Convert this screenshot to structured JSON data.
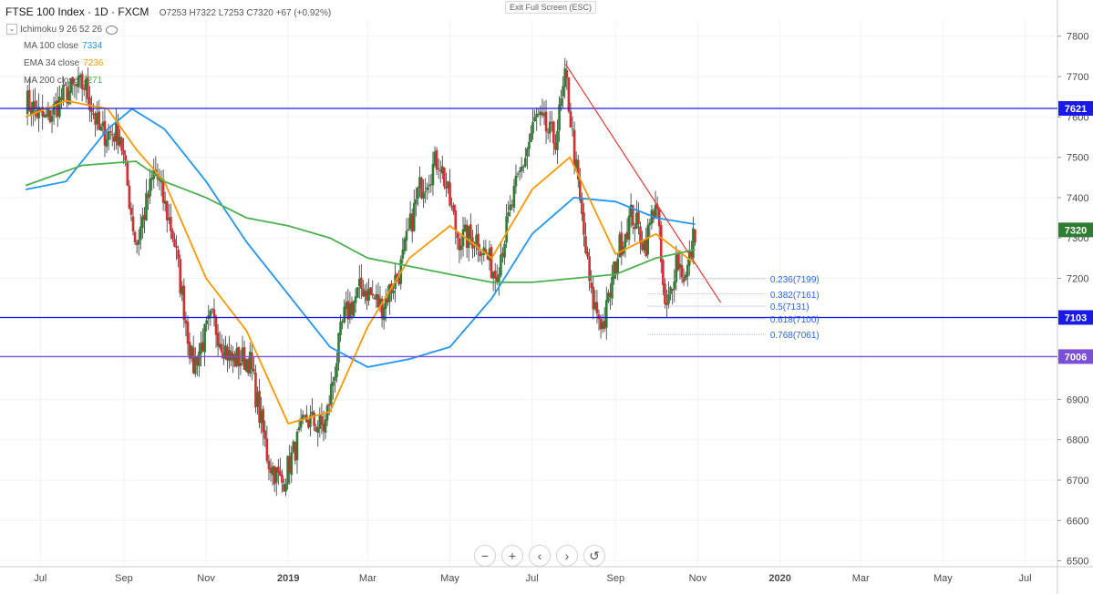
{
  "header": {
    "title": "FTSE 100 Index · 1D · FXCM",
    "ohlc": "O7253 H7322 L7253 C7320 +67 (+0.92%)"
  },
  "indicators": [
    {
      "label": "Ichimoku 9 26 52 26",
      "value": "",
      "color": "#9e9e9e"
    },
    {
      "label": "MA 100 close",
      "value": "7334",
      "color": "#2196f3"
    },
    {
      "label": "EMA 34 close",
      "value": "7236",
      "color": "#ff9800"
    },
    {
      "label": "MA 200 close",
      "value": "7271",
      "color": "#4caf50"
    }
  ],
  "exit_fullscreen": "Exit Full Screen (ESC)",
  "buttons": [
    "−",
    "+",
    "‹",
    "›",
    "↺"
  ],
  "chart_data": {
    "type": "candlestick",
    "symbol": "FTSE 100 Index",
    "interval": "1D",
    "source": "FXCM",
    "x_tick_labels": [
      "Jul",
      "Sep",
      "Nov",
      "2019",
      "Mar",
      "May",
      "Jul",
      "Sep",
      "Nov",
      "2020",
      "Mar",
      "May",
      "Jul"
    ],
    "y_tick_labels": [
      6500,
      6600,
      6700,
      6800,
      6900,
      7000,
      7100,
      7200,
      7300,
      7400,
      7500,
      7600,
      7700,
      7800
    ],
    "ylim": [
      6490,
      7840
    ],
    "close_path": [
      [
        "2018-06-20",
        7640
      ],
      [
        "2018-07-05",
        7590
      ],
      [
        "2018-07-20",
        7660
      ],
      [
        "2018-08-03",
        7680
      ],
      [
        "2018-08-14",
        7560
      ],
      [
        "2018-08-29",
        7560
      ],
      [
        "2018-09-10",
        7280
      ],
      [
        "2018-09-24",
        7470
      ],
      [
        "2018-10-08",
        7300
      ],
      [
        "2018-10-22",
        6980
      ],
      [
        "2018-11-05",
        7100
      ],
      [
        "2018-11-19",
        7000
      ],
      [
        "2018-12-03",
        7000
      ],
      [
        "2018-12-17",
        6750
      ],
      [
        "2018-12-27",
        6690
      ],
      [
        "2019-01-14",
        6850
      ],
      [
        "2019-01-28",
        6830
      ],
      [
        "2019-02-11",
        7100
      ],
      [
        "2019-02-25",
        7180
      ],
      [
        "2019-03-11",
        7130
      ],
      [
        "2019-03-25",
        7220
      ],
      [
        "2019-04-08",
        7420
      ],
      [
        "2019-04-23",
        7500
      ],
      [
        "2019-05-07",
        7300
      ],
      [
        "2019-05-21",
        7300
      ],
      [
        "2019-06-04",
        7210
      ],
      [
        "2019-06-18",
        7410
      ],
      [
        "2019-07-04",
        7600
      ],
      [
        "2019-07-18",
        7540
      ],
      [
        "2019-07-26",
        7700
      ],
      [
        "2019-08-05",
        7400
      ],
      [
        "2019-08-14",
        7150
      ],
      [
        "2019-08-23",
        7080
      ],
      [
        "2019-09-03",
        7270
      ],
      [
        "2019-09-13",
        7360
      ],
      [
        "2019-09-23",
        7280
      ],
      [
        "2019-10-01",
        7400
      ],
      [
        "2019-10-08",
        7100
      ],
      [
        "2019-10-16",
        7250
      ],
      [
        "2019-10-23",
        7200
      ],
      [
        "2019-10-30",
        7320
      ]
    ],
    "series": [
      {
        "name": "MA 100 close",
        "color": "#2196f3",
        "values": [
          [
            "2018-06-20",
            7420
          ],
          [
            "2018-07-20",
            7440
          ],
          [
            "2018-08-20",
            7570
          ],
          [
            "2018-09-07",
            7620
          ],
          [
            "2018-10-01",
            7570
          ],
          [
            "2018-11-01",
            7440
          ],
          [
            "2018-12-01",
            7290
          ],
          [
            "2019-01-01",
            7160
          ],
          [
            "2019-02-01",
            7030
          ],
          [
            "2019-03-01",
            6980
          ],
          [
            "2019-04-01",
            7000
          ],
          [
            "2019-05-01",
            7030
          ],
          [
            "2019-06-01",
            7150
          ],
          [
            "2019-07-01",
            7310
          ],
          [
            "2019-08-01",
            7400
          ],
          [
            "2019-09-01",
            7390
          ],
          [
            "2019-10-01",
            7350
          ],
          [
            "2019-10-30",
            7334
          ]
        ]
      },
      {
        "name": "EMA 34 close",
        "color": "#ff9800",
        "values": [
          [
            "2018-06-20",
            7600
          ],
          [
            "2018-07-20",
            7640
          ],
          [
            "2018-08-20",
            7620
          ],
          [
            "2018-09-10",
            7520
          ],
          [
            "2018-10-01",
            7440
          ],
          [
            "2018-11-01",
            7200
          ],
          [
            "2018-12-01",
            7070
          ],
          [
            "2019-01-01",
            6840
          ],
          [
            "2019-02-01",
            6870
          ],
          [
            "2019-03-01",
            7080
          ],
          [
            "2019-04-01",
            7250
          ],
          [
            "2019-05-01",
            7330
          ],
          [
            "2019-06-01",
            7250
          ],
          [
            "2019-07-01",
            7420
          ],
          [
            "2019-07-29",
            7500
          ],
          [
            "2019-09-01",
            7260
          ],
          [
            "2019-10-01",
            7310
          ],
          [
            "2019-10-30",
            7236
          ]
        ]
      },
      {
        "name": "MA 200 close",
        "color": "#4caf50",
        "values": [
          [
            "2018-06-20",
            7430
          ],
          [
            "2018-08-01",
            7480
          ],
          [
            "2018-09-10",
            7490
          ],
          [
            "2018-10-01",
            7440
          ],
          [
            "2018-11-01",
            7400
          ],
          [
            "2018-12-01",
            7350
          ],
          [
            "2019-01-01",
            7330
          ],
          [
            "2019-02-01",
            7300
          ],
          [
            "2019-03-01",
            7250
          ],
          [
            "2019-04-01",
            7230
          ],
          [
            "2019-05-01",
            7210
          ],
          [
            "2019-06-01",
            7190
          ],
          [
            "2019-07-01",
            7190
          ],
          [
            "2019-08-01",
            7200
          ],
          [
            "2019-09-01",
            7210
          ],
          [
            "2019-10-01",
            7250
          ],
          [
            "2019-10-30",
            7271
          ]
        ]
      }
    ],
    "horizontal_lines": [
      {
        "value": 7621,
        "label": "7621",
        "color": "#1a1ae6"
      },
      {
        "value": 7103,
        "label": "7103",
        "color": "#1a1ae6"
      },
      {
        "value": 7006,
        "label": "7006",
        "color": "#7b4fd8"
      }
    ],
    "last_price": {
      "value": 7320,
      "label": "7320"
    },
    "trendline": {
      "color": "#e53935",
      "from": [
        "2019-07-26",
        7730
      ],
      "to": [
        "2019-11-18",
        7140
      ]
    },
    "fibonacci": {
      "color": "#2962ff",
      "levels": [
        {
          "ratio": "0.236",
          "value": 7199,
          "label": "0.236(7199)"
        },
        {
          "ratio": "0.382",
          "value": 7161,
          "label": "0.382(7161)"
        },
        {
          "ratio": "0.5",
          "value": 7131,
          "label": "0.5(7131)"
        },
        {
          "ratio": "0.618",
          "value": 7100,
          "label": "0.618(7100)"
        },
        {
          "ratio": "0.768",
          "value": 7061,
          "label": "0.768(7061)"
        }
      ]
    }
  }
}
